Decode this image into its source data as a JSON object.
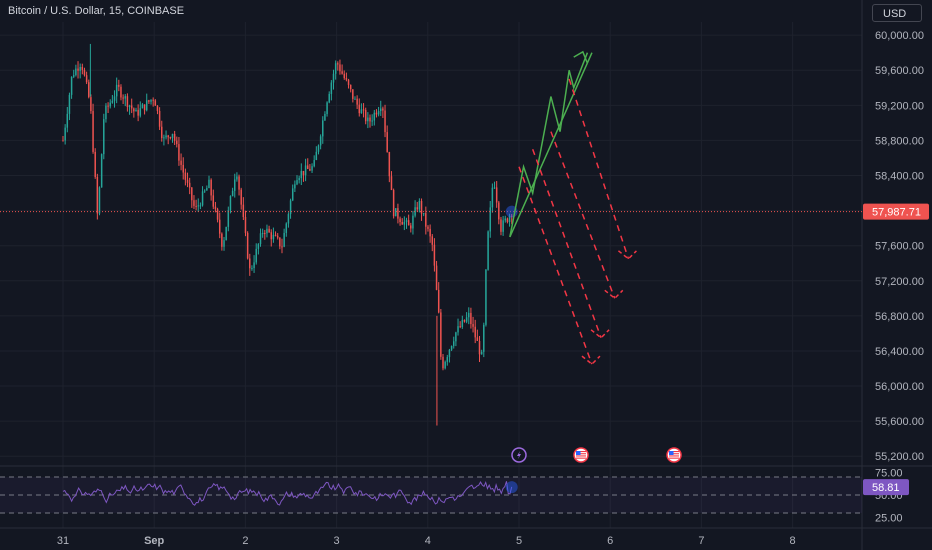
{
  "header": {
    "symbol_title": "Bitcoin / U.S. Dollar, 15, COINBASE",
    "currency": "USD"
  },
  "colors": {
    "background": "#131722",
    "up": "#26a69a",
    "down": "#ef5350",
    "rsi": "#7e57c2",
    "forecast_up": "#4caf50",
    "forecast_down": "#f23645"
  },
  "event_icons": [
    "lightning-icon",
    "us-flag-icon",
    "us-flag-icon"
  ],
  "chart_data": {
    "type": "candlestick",
    "title": "Bitcoin / U.S. Dollar, 15, COINBASE",
    "ylim": [
      55100,
      60150
    ],
    "price_ticks": [
      "60,000.00",
      "59,600.00",
      "59,200.00",
      "58,800.00",
      "58,400.00",
      "58,000.00",
      "57,600.00",
      "57,200.00",
      "56,800.00",
      "56,400.00",
      "56,000.00",
      "55,600.00",
      "55,200.00"
    ],
    "last_price": {
      "value": 57987.71,
      "label": "57,987.71"
    },
    "x_labels": [
      "31",
      "Sep",
      "2",
      "3",
      "4",
      "5",
      "6",
      "7",
      "8"
    ],
    "price_path": [
      {
        "x": 0,
        "y": 58800
      },
      {
        "x": 0.1,
        "y": 59550
      },
      {
        "x": 0.2,
        "y": 59700
      },
      {
        "x": 0.3,
        "y": 59200
      },
      {
        "x": 0.38,
        "y": 57900
      },
      {
        "x": 0.45,
        "y": 59100
      },
      {
        "x": 0.6,
        "y": 59400
      },
      {
        "x": 0.8,
        "y": 59100
      },
      {
        "x": 1.0,
        "y": 59300
      },
      {
        "x": 1.1,
        "y": 58800
      },
      {
        "x": 1.2,
        "y": 58900
      },
      {
        "x": 1.3,
        "y": 58500
      },
      {
        "x": 1.45,
        "y": 58000
      },
      {
        "x": 1.6,
        "y": 58300
      },
      {
        "x": 1.75,
        "y": 57600
      },
      {
        "x": 1.9,
        "y": 58500
      },
      {
        "x": 2.05,
        "y": 57300
      },
      {
        "x": 2.2,
        "y": 57800
      },
      {
        "x": 2.4,
        "y": 57600
      },
      {
        "x": 2.55,
        "y": 58400
      },
      {
        "x": 2.75,
        "y": 58500
      },
      {
        "x": 2.9,
        "y": 59300
      },
      {
        "x": 3.0,
        "y": 59700
      },
      {
        "x": 3.2,
        "y": 59250
      },
      {
        "x": 3.35,
        "y": 59000
      },
      {
        "x": 3.5,
        "y": 59250
      },
      {
        "x": 3.62,
        "y": 58000
      },
      {
        "x": 3.8,
        "y": 57800
      },
      {
        "x": 3.9,
        "y": 58100
      },
      {
        "x": 4.05,
        "y": 57600
      },
      {
        "x": 4.12,
        "y": 56800
      },
      {
        "x": 4.15,
        "y": 56200
      },
      {
        "x": 4.3,
        "y": 56600
      },
      {
        "x": 4.45,
        "y": 56800
      },
      {
        "x": 4.6,
        "y": 56300
      },
      {
        "x": 4.65,
        "y": 57600
      },
      {
        "x": 4.72,
        "y": 58400
      },
      {
        "x": 4.8,
        "y": 57800
      },
      {
        "x": 4.92,
        "y": 57990
      }
    ],
    "forecast_up": {
      "zigzag": [
        {
          "x": 4.9,
          "y": 57700
        },
        {
          "x": 5.05,
          "y": 58500
        },
        {
          "x": 5.15,
          "y": 58200
        },
        {
          "x": 5.35,
          "y": 59300
        },
        {
          "x": 5.45,
          "y": 58900
        },
        {
          "x": 5.55,
          "y": 59600
        },
        {
          "x": 5.6,
          "y": 59400
        },
        {
          "x": 5.75,
          "y": 59800
        }
      ],
      "trendline": [
        {
          "x": 4.9,
          "y": 57700
        },
        {
          "x": 5.8,
          "y": 59800
        }
      ],
      "arrowhead": [
        {
          "x": 5.6,
          "y": 59750
        },
        {
          "x": 5.7,
          "y": 59810
        },
        {
          "x": 5.75,
          "y": 59680
        }
      ]
    },
    "forecast_down": [
      {
        "from": {
          "x": 5.0,
          "y": 58500
        },
        "to": {
          "x": 5.8,
          "y": 56250
        }
      },
      {
        "from": {
          "x": 5.15,
          "y": 58700
        },
        "to": {
          "x": 5.9,
          "y": 56550
        }
      },
      {
        "from": {
          "x": 5.35,
          "y": 58900
        },
        "to": {
          "x": 6.05,
          "y": 57000
        }
      },
      {
        "from": {
          "x": 5.55,
          "y": 59500
        },
        "to": {
          "x": 6.2,
          "y": 57450
        }
      }
    ],
    "rsi": {
      "ticks": [
        "75.00",
        "50.00",
        "25.00"
      ],
      "levels": [
        70,
        50,
        30
      ],
      "ylim": [
        20,
        80
      ],
      "current": {
        "value": 58.81,
        "label": "58.81"
      }
    }
  }
}
